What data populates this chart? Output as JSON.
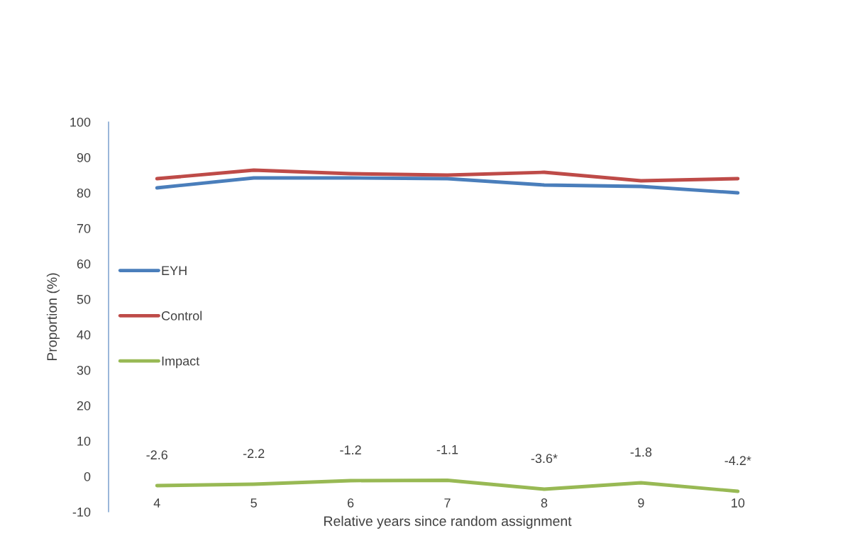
{
  "chart_data": {
    "type": "line",
    "xlabel": "Relative years since random assignment",
    "ylabel": "Proportion (%)",
    "categories": [
      "4",
      "5",
      "6",
      "7",
      "8",
      "9",
      "10"
    ],
    "series": [
      {
        "name": "EYH",
        "color": "#4a7ebb",
        "values": [
          81.4,
          84.2,
          84.2,
          84,
          82.2,
          81.8,
          80
        ]
      },
      {
        "name": "Control",
        "color": "#be4b48",
        "values": [
          84,
          86.4,
          85.4,
          85,
          85.8,
          83.4,
          84
        ]
      },
      {
        "name": "Impact",
        "color": "#98b954",
        "values": [
          -2.6,
          -2.2,
          -1.2,
          -1.1,
          -3.6,
          -1.8,
          -4.2
        ],
        "value_labels": [
          "-2.6",
          "-2.2",
          "-1.2",
          "-1.1",
          "-3.6*",
          "-1.8",
          "-4.2*"
        ]
      }
    ],
    "ylim": [
      -10,
      100
    ],
    "yticks": [
      -10,
      0,
      10,
      20,
      30,
      40,
      50,
      60,
      70,
      80,
      90,
      100
    ],
    "grid": false,
    "legend": "left",
    "marker": "none",
    "line_style": "solid"
  }
}
